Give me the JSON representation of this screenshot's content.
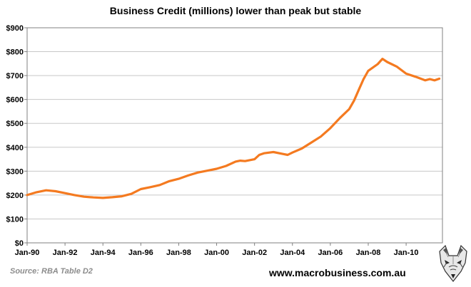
{
  "chart_data": {
    "type": "line",
    "title": "Business Credit (millions) lower than peak but stable",
    "xlabel": "",
    "ylabel": "",
    "ylim": [
      0,
      900
    ],
    "y_ticks": [
      "$0",
      "$100",
      "$200",
      "$300",
      "$400",
      "$500",
      "$600",
      "$700",
      "$800",
      "$900"
    ],
    "x_ticks": [
      "Jan-90",
      "Jan-92",
      "Jan-94",
      "Jan-96",
      "Jan-98",
      "Jan-00",
      "Jan-02",
      "Jan-04",
      "Jan-06",
      "Jan-08",
      "Jan-10"
    ],
    "grid": "horizontal",
    "colors": {
      "series": "#f47a20",
      "plot_border": "#808080",
      "grid": "#c8c8c8"
    },
    "series": [
      {
        "x": [
          "Jan-90",
          "Jul-90",
          "Jan-91",
          "Jul-91",
          "Jan-92",
          "Jul-92",
          "Jan-93",
          "Jul-93",
          "Jan-94",
          "Jul-94",
          "Jan-95",
          "Jul-95",
          "Jan-96",
          "Jul-96",
          "Jan-97",
          "Jul-97",
          "Jan-98",
          "Jul-98",
          "Jan-99",
          "Jul-99",
          "Jan-00",
          "Jul-00",
          "Jan-01",
          "Apr-01",
          "Jul-01",
          "Jan-02",
          "Apr-02",
          "Jul-02",
          "Jan-03",
          "Jul-03",
          "Oct-03",
          "Jan-04",
          "Jul-04",
          "Jan-05",
          "Jul-05",
          "Jan-06",
          "Jul-06",
          "Jan-07",
          "Apr-07",
          "Jul-07",
          "Oct-07",
          "Jan-08",
          "Jul-08",
          "Oct-08",
          "Jan-09",
          "Jul-09",
          "Jan-10",
          "Jul-10",
          "Jan-11",
          "Apr-11",
          "Jul-11",
          "Oct-11"
        ],
        "values": [
          200,
          212,
          220,
          216,
          208,
          200,
          193,
          190,
          188,
          191,
          195,
          205,
          225,
          233,
          242,
          258,
          268,
          282,
          294,
          302,
          310,
          322,
          340,
          344,
          342,
          350,
          368,
          375,
          380,
          372,
          368,
          378,
          395,
          420,
          445,
          480,
          522,
          560,
          595,
          640,
          685,
          720,
          748,
          770,
          757,
          738,
          708,
          695,
          680,
          685,
          680,
          687
        ]
      }
    ]
  },
  "footer": {
    "source": "Source: RBA Table D2",
    "website": "www.macrobusiness.com.au",
    "logo_icon": "wolf-head-logo-icon"
  }
}
